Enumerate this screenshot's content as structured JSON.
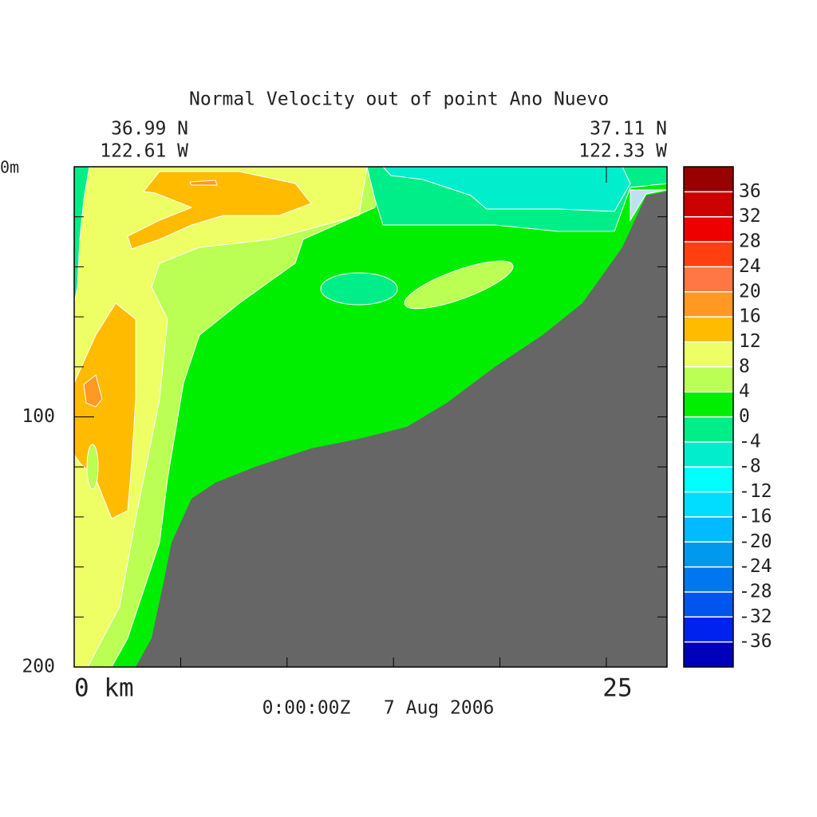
{
  "chart_data": {
    "type": "contour",
    "title": "Normal Velocity out of point Ano Nuevo",
    "start_lat": "36.99 N",
    "start_lon": "122.61 W",
    "end_lat": "37.11 N",
    "end_lon": "122.33 W",
    "time_label": "0:00:00Z   7 Aug 2006",
    "xlim": [
      0,
      27.85
    ],
    "xticks": [
      {
        "value": 0,
        "label": "0 km"
      },
      25
    ],
    "minor_xticks": [
      5,
      10,
      15,
      20
    ],
    "ylim": [
      0,
      200
    ],
    "y_reversed": true,
    "yticks": [
      {
        "value": 0,
        "label": "0m"
      },
      100,
      200
    ],
    "minor_yticks": [
      20,
      40,
      60,
      80,
      120,
      140,
      160,
      180
    ],
    "colorbar": {
      "clim": [
        -40,
        40
      ],
      "ticks": [
        36,
        32,
        28,
        24,
        20,
        16,
        12,
        8,
        4,
        0,
        -4,
        -8,
        -12,
        -16,
        -20,
        -24,
        -28,
        -32,
        -36
      ],
      "colors": [
        "#990000",
        "#cc0000",
        "#ee0000",
        "#ff3f10",
        "#ff7744",
        "#ff9922",
        "#ffbb00",
        "#eeff66",
        "#bbff55",
        "#00ee00",
        "#00ee88",
        "#00eecc",
        "#00ffff",
        "#00ddff",
        "#00bbff",
        "#0099ee",
        "#0077ee",
        "#0055ee",
        "#0022ee",
        "#0000bb"
      ]
    },
    "land_color": "#666666"
  }
}
